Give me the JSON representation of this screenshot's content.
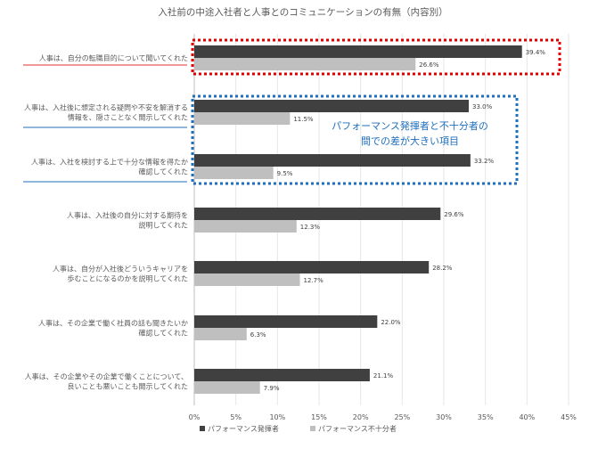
{
  "chart_data": {
    "type": "bar",
    "orientation": "horizontal",
    "title": "入社前の中途入社者と人事とのコミュニケーションの有無（内容別）",
    "categories": [
      [
        "人事は、自分の転職目的について聞いてくれた"
      ],
      [
        "人事は、入社後に想定される疑問や不安を解消する",
        "情報を、隠さことなく開示してくれた"
      ],
      [
        "人事は、入社を検討する上で十分な情報を得たか",
        "確認してくれた"
      ],
      [
        "人事は、入社後の自分に対する期待を",
        "説明してくれた"
      ],
      [
        "人事は、自分が入社後どういうキャリアを",
        "歩むことになるのかを説明してくれた"
      ],
      [
        "人事は、その企業で働く社員の話も聞きたいか",
        "確認してくれた"
      ],
      [
        "人事は、その企業やその企業で働くことについて、",
        "良いことも悪いことも開示してくれた"
      ]
    ],
    "series": [
      {
        "name": "パフォーマンス発揮者",
        "values": [
          39.4,
          33.0,
          33.2,
          29.6,
          28.2,
          22.0,
          21.1
        ],
        "labels": [
          "39.4%",
          "33.0%",
          "33.2%",
          "29.6%",
          "28.2%",
          "22.0%",
          "21.1%"
        ],
        "color": "#404040"
      },
      {
        "name": "パフォーマンス不十分者",
        "values": [
          26.6,
          11.5,
          9.5,
          12.3,
          12.7,
          6.3,
          7.9
        ],
        "labels": [
          "26.6%",
          "11.5%",
          "9.5%",
          "12.3%",
          "12.7%",
          "6.3%",
          "7.9%"
        ],
        "color": "#bfbfbf"
      }
    ],
    "xlim": [
      0,
      45
    ],
    "xticks": [
      "0%",
      "5%",
      "10%",
      "15%",
      "20%",
      "25%",
      "30%",
      "35%",
      "40%",
      "45%"
    ],
    "legend_position": "bottom",
    "annotation": [
      "パフォーマンス発揮者と不十分者の",
      "間での差が大きい項目"
    ],
    "colors": {
      "red_box": "#e00000",
      "blue_box": "#1f6fbd",
      "red_underline": "#e03030",
      "blue_underline": "#1f6fbd"
    }
  }
}
